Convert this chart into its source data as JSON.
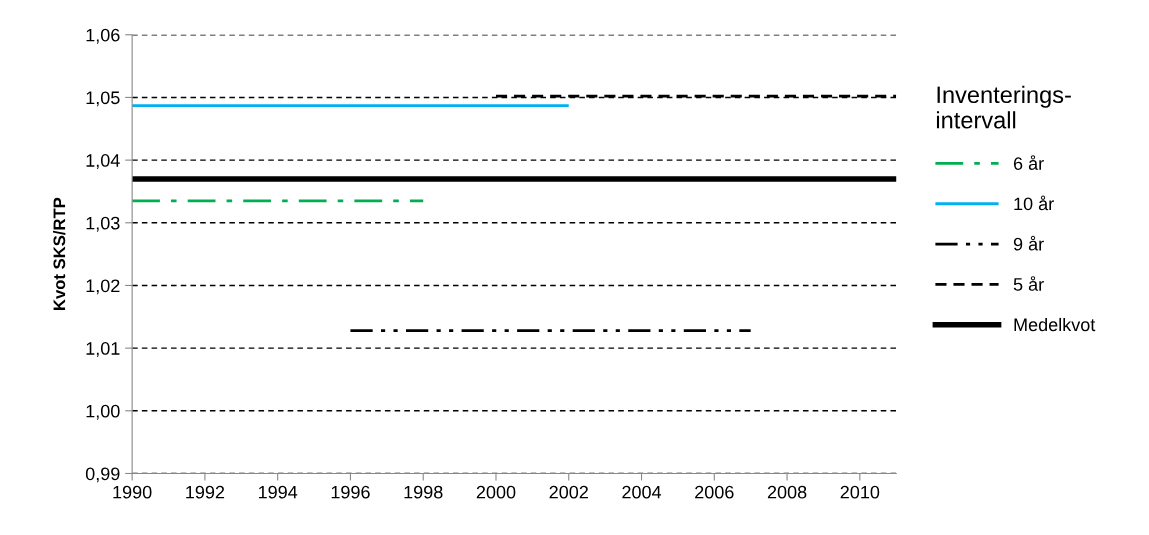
{
  "chart_data": {
    "type": "line",
    "ylabel": "Kvot SKS/RTP",
    "legend_title": "Inventerings-\nintervall",
    "xlim": [
      1990,
      2011
    ],
    "xticks": [
      1990,
      1992,
      1994,
      1996,
      1998,
      2000,
      2002,
      2004,
      2006,
      2008,
      2010
    ],
    "ylim": [
      0.99,
      1.06
    ],
    "yticks": [
      {
        "value": 0.99,
        "label": "0,99"
      },
      {
        "value": 1.0,
        "label": "1,00"
      },
      {
        "value": 1.01,
        "label": "1,01"
      },
      {
        "value": 1.02,
        "label": "1,02"
      },
      {
        "value": 1.03,
        "label": "1,03"
      },
      {
        "value": 1.04,
        "label": "1,04"
      },
      {
        "value": 1.05,
        "label": "1,05"
      },
      {
        "value": 1.06,
        "label": "1,06"
      }
    ],
    "grid": "y",
    "legend": "right",
    "marker": "none",
    "series": [
      {
        "name": "6 år",
        "color": "#00b050",
        "line_style": "dashdot",
        "x": [
          1990,
          1998
        ],
        "values": [
          1.0335,
          1.0335
        ]
      },
      {
        "name": "10 år",
        "color": "#00b0f0",
        "line_style": "solid",
        "x": [
          1990,
          2002
        ],
        "values": [
          1.0487,
          1.0487
        ]
      },
      {
        "name": "9 år",
        "color": "#000000",
        "line_style": "dashdotdot",
        "x": [
          1996,
          2007
        ],
        "values": [
          1.0128,
          1.0128
        ]
      },
      {
        "name": "5 år",
        "color": "#000000",
        "line_style": "dashed",
        "x": [
          2000,
          2011
        ],
        "values": [
          1.0502,
          1.0502
        ]
      }
    ],
    "ref_lines": [
      {
        "axis": "y",
        "value": 1.037,
        "label": "Medelkvot",
        "color": "#000000",
        "line_style": "solid"
      }
    ]
  }
}
